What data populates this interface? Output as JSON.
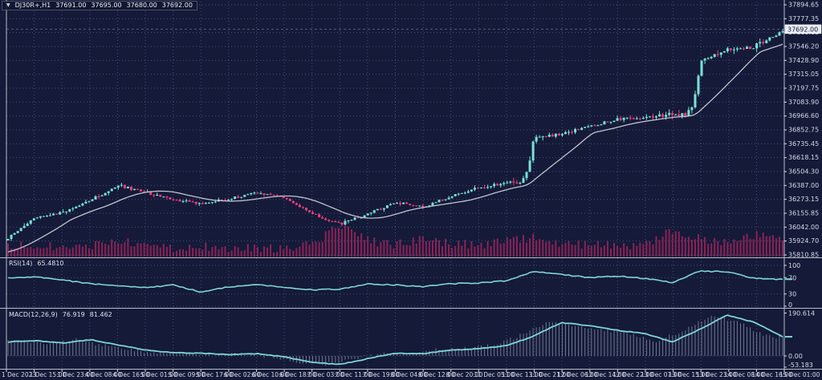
{
  "colors": {
    "background": "#141a38",
    "grid": "#454f7a",
    "bull_candle": "#79e2d6",
    "bear_candle": "#f23d7c",
    "volume": "#8c2256",
    "moving_average": "#c2c4ce",
    "indicator_line": "#7dd6d2",
    "histogram": "#b9c3dd",
    "separator": "#b9bdca",
    "axis_text": "#d6dae6",
    "price_box_bg": "#e9ecf4",
    "price_box_text": "#10152e",
    "title_text": "#e8eaf2"
  },
  "chart_data": [
    {
      "type": "candlestick",
      "symbol": "DJ30R+,H1",
      "timeframe": "H1",
      "ohlc_display": {
        "open": "37691.00",
        "high": "37695.00",
        "low": "37680.00",
        "close": "37692.00"
      },
      "current_price": "37692.00",
      "current_price_value": 37692.0,
      "price_top": 37894.65,
      "price_bottom": 35810.85,
      "price_axis_labels": [
        "37894.65",
        "37777.35",
        "37660.05",
        "37546.20",
        "37428.90",
        "37315.05",
        "37197.75",
        "37083.90",
        "36966.60",
        "36852.75",
        "36735.45",
        "36618.15",
        "36504.30",
        "36387.00",
        "36273.15",
        "36155.85",
        "36042.00",
        "35924.70",
        "35810.85"
      ],
      "time_axis_labels": [
        "1 Dec 2023",
        "1 Dec 15:00",
        "1 Dec 23:00",
        "4 Dec 08:00",
        "4 Dec 16:00",
        "5 Dec 01:00",
        "5 Dec 09:00",
        "5 Dec 17:00",
        "6 Dec 02:00",
        "6 Dec 10:00",
        "6 Dec 18:00",
        "7 Dec 03:00",
        "7 Dec 11:00",
        "7 Dec 19:00",
        "8 Dec 04:00",
        "8 Dec 12:00",
        "8 Dec 20:00",
        "11 Dec 05:00",
        "11 Dec 13:00",
        "11 Dec 21:00",
        "12 Dec 06:00",
        "12 Dec 14:00",
        "12 Dec 22:00",
        "13 Dec 07:00",
        "13 Dec 15:00",
        "13 Dec 23:00",
        "14 Dec 08:00",
        "14 Dec 16:00",
        "15 Dec 01:00"
      ],
      "candles_total": 240,
      "close_anchors": [
        35950,
        36130,
        36160,
        36270,
        36390,
        36330,
        36270,
        36240,
        36280,
        36330,
        36290,
        36150,
        36070,
        36150,
        36250,
        36210,
        36300,
        36370,
        36410,
        36780,
        36820,
        36880,
        36940,
        36960,
        36980,
        37430,
        37520,
        37550,
        37685
      ],
      "volatility_anchors": [
        30,
        35,
        30,
        30,
        35,
        30,
        25,
        25,
        25,
        25,
        25,
        30,
        35,
        30,
        25,
        25,
        25,
        30,
        40,
        45,
        35,
        30,
        30,
        30,
        60,
        55,
        45,
        55,
        40
      ],
      "segment_ease": [
        1,
        1,
        1,
        1,
        1,
        1,
        1,
        1,
        1,
        1,
        1,
        1,
        1,
        1,
        1,
        1,
        1,
        1,
        5,
        1,
        1,
        1,
        1,
        1,
        6,
        1,
        1,
        1
      ],
      "volume_anchors": [
        0.25,
        0.3,
        0.2,
        0.25,
        0.5,
        0.3,
        0.2,
        0.25,
        0.2,
        0.2,
        0.2,
        0.3,
        0.95,
        0.45,
        0.3,
        0.5,
        0.35,
        0.3,
        0.4,
        0.55,
        0.35,
        0.3,
        0.3,
        0.25,
        0.8,
        0.5,
        0.4,
        0.65,
        0.45
      ],
      "ma_period": 20,
      "ma_prehistory": 35830,
      "grid": "dotted"
    },
    {
      "type": "line",
      "name": "RSI",
      "params": "RSI(14)",
      "current_value": "65.4810",
      "levels": [
        100,
        70,
        30,
        0
      ],
      "level_labels": [
        "100",
        "70",
        "30",
        "0"
      ],
      "anchors": [
        70,
        72,
        64,
        55,
        50,
        46,
        52,
        34,
        48,
        52,
        47,
        40,
        42,
        55,
        52,
        48,
        55,
        57,
        62,
        85,
        78,
        70,
        74,
        68,
        58,
        86,
        84,
        68,
        65.5
      ]
    },
    {
      "type": "macd",
      "name": "MACD",
      "params": "MACD(12,26,9)",
      "main_value": "76.919",
      "signal_value": "81.462",
      "axis_labels": [
        "190.614",
        "0.00",
        "-53.183"
      ],
      "axis_values": [
        190.614,
        0.0,
        -53.183
      ],
      "signal_anchors": [
        62,
        68,
        58,
        72,
        48,
        26,
        15,
        12,
        6,
        10,
        -4,
        -28,
        -38,
        -12,
        12,
        10,
        26,
        32,
        45,
        88,
        148,
        134,
        114,
        100,
        62,
        118,
        182,
        148,
        86
      ],
      "histogram_lead": 0.55
    }
  ]
}
